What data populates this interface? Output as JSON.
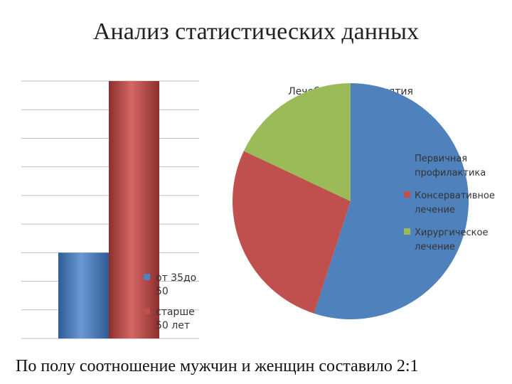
{
  "slide": {
    "title": "Анализ статистических данных",
    "footer": "По полу соотношение мужчин и  женщин составило 2:1"
  },
  "chart_data": [
    {
      "type": "bar",
      "title": "",
      "categories": [
        ""
      ],
      "series": [
        {
          "name": "от 35до 50",
          "values": [
            3
          ],
          "color": "#4F81BD"
        },
        {
          "name": "старше 50 лет",
          "values": [
            9
          ],
          "color": "#C0504D"
        }
      ],
      "ylim": [
        0,
        9
      ],
      "grid": true,
      "legend": "bottom-right",
      "legend_lines": [
        [
          "от 35до",
          "50"
        ],
        [
          "старше",
          "50 лет"
        ]
      ]
    },
    {
      "type": "pie",
      "title": "Лечебные мероприятия",
      "labels": [
        "Первичная профилактика",
        "Консервативное лечение",
        "Хирургическое лечение"
      ],
      "values": [
        55,
        27,
        18
      ],
      "colors": [
        "#4F81BD",
        "#C0504D",
        "#9BBB59"
      ],
      "legend": "right",
      "legend_lines": [
        [
          "Первичная",
          "профилактика"
        ],
        [
          "Консервативное",
          "лечение"
        ],
        [
          "Хирургическое",
          "лечение"
        ]
      ]
    }
  ]
}
